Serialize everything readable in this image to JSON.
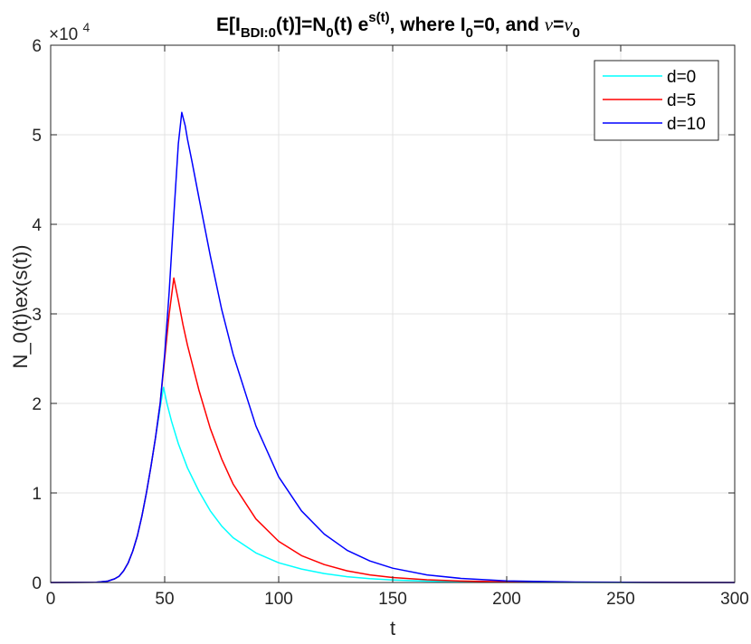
{
  "chart_data": {
    "type": "line",
    "title": {
      "parts": [
        {
          "text": "E[I",
          "style": "normal"
        },
        {
          "text": "BDI:0",
          "style": "sub"
        },
        {
          "text": "(t)]=N",
          "style": "normal"
        },
        {
          "text": "0",
          "style": "sub"
        },
        {
          "text": "(t) e",
          "style": "normal"
        },
        {
          "text": "s(t)",
          "style": "sup"
        },
        {
          "text": ", where I",
          "style": "normal"
        },
        {
          "text": "0",
          "style": "sub"
        },
        {
          "text": "=0, and ",
          "style": "normal"
        },
        {
          "text": "ν",
          "style": "italic"
        },
        {
          "text": "=",
          "style": "normal"
        },
        {
          "text": "ν",
          "style": "italic"
        },
        {
          "text": "0",
          "style": "sub"
        }
      ]
    },
    "xlabel": "t",
    "ylabel": "N_0(t)\\ex(s(t))",
    "y_exponent_label": "×10",
    "y_exponent_power": "4",
    "xlim": [
      0,
      300
    ],
    "ylim": [
      0,
      6
    ],
    "xticks": [
      0,
      50,
      100,
      150,
      200,
      250,
      300
    ],
    "yticks": [
      0,
      1,
      2,
      3,
      4,
      5,
      6
    ],
    "grid": true,
    "legend_position": "top-right",
    "series": [
      {
        "name": "d=0",
        "color": "#00ffff",
        "points": [
          [
            0,
            0
          ],
          [
            20,
            0.003
          ],
          [
            25,
            0.015
          ],
          [
            28,
            0.04
          ],
          [
            30,
            0.07
          ],
          [
            32,
            0.13
          ],
          [
            34,
            0.22
          ],
          [
            36,
            0.35
          ],
          [
            38,
            0.52
          ],
          [
            40,
            0.74
          ],
          [
            42,
            1.0
          ],
          [
            44,
            1.3
          ],
          [
            46,
            1.62
          ],
          [
            48,
            1.95
          ],
          [
            49.5,
            2.18
          ],
          [
            51,
            2.0
          ],
          [
            53,
            1.8
          ],
          [
            56,
            1.55
          ],
          [
            60,
            1.28
          ],
          [
            65,
            1.02
          ],
          [
            70,
            0.8
          ],
          [
            75,
            0.63
          ],
          [
            80,
            0.5
          ],
          [
            90,
            0.33
          ],
          [
            100,
            0.22
          ],
          [
            110,
            0.15
          ],
          [
            120,
            0.1
          ],
          [
            130,
            0.065
          ],
          [
            140,
            0.042
          ],
          [
            150,
            0.028
          ],
          [
            165,
            0.015
          ],
          [
            180,
            0.008
          ],
          [
            200,
            0.003
          ],
          [
            230,
            0.001
          ],
          [
            260,
            0.0003
          ],
          [
            300,
            0
          ]
        ]
      },
      {
        "name": "d=5",
        "color": "#ff0000",
        "points": [
          [
            0,
            0
          ],
          [
            20,
            0.003
          ],
          [
            25,
            0.015
          ],
          [
            28,
            0.04
          ],
          [
            30,
            0.07
          ],
          [
            32,
            0.13
          ],
          [
            34,
            0.22
          ],
          [
            36,
            0.35
          ],
          [
            38,
            0.52
          ],
          [
            40,
            0.74
          ],
          [
            42,
            1.0
          ],
          [
            44,
            1.3
          ],
          [
            46,
            1.62
          ],
          [
            48,
            2.0
          ],
          [
            50,
            2.5
          ],
          [
            52,
            3.0
          ],
          [
            54,
            3.4
          ],
          [
            56,
            3.15
          ],
          [
            58,
            2.88
          ],
          [
            60,
            2.65
          ],
          [
            65,
            2.15
          ],
          [
            70,
            1.72
          ],
          [
            75,
            1.38
          ],
          [
            80,
            1.1
          ],
          [
            90,
            0.71
          ],
          [
            100,
            0.46
          ],
          [
            110,
            0.3
          ],
          [
            120,
            0.2
          ],
          [
            130,
            0.13
          ],
          [
            140,
            0.085
          ],
          [
            150,
            0.056
          ],
          [
            165,
            0.03
          ],
          [
            180,
            0.016
          ],
          [
            200,
            0.007
          ],
          [
            230,
            0.002
          ],
          [
            260,
            0.0006
          ],
          [
            300,
            0
          ]
        ]
      },
      {
        "name": "d=10",
        "color": "#0000ff",
        "points": [
          [
            0,
            0
          ],
          [
            20,
            0.003
          ],
          [
            25,
            0.015
          ],
          [
            28,
            0.04
          ],
          [
            30,
            0.07
          ],
          [
            32,
            0.13
          ],
          [
            34,
            0.22
          ],
          [
            36,
            0.35
          ],
          [
            38,
            0.52
          ],
          [
            40,
            0.74
          ],
          [
            42,
            1.0
          ],
          [
            44,
            1.3
          ],
          [
            46,
            1.62
          ],
          [
            48,
            2.0
          ],
          [
            50,
            2.55
          ],
          [
            52,
            3.25
          ],
          [
            54,
            4.1
          ],
          [
            56,
            4.9
          ],
          [
            57.5,
            5.25
          ],
          [
            59,
            5.1
          ],
          [
            60,
            4.95
          ],
          [
            62,
            4.7
          ],
          [
            65,
            4.3
          ],
          [
            70,
            3.65
          ],
          [
            75,
            3.05
          ],
          [
            80,
            2.55
          ],
          [
            90,
            1.75
          ],
          [
            100,
            1.18
          ],
          [
            110,
            0.8
          ],
          [
            120,
            0.54
          ],
          [
            130,
            0.36
          ],
          [
            140,
            0.24
          ],
          [
            150,
            0.16
          ],
          [
            165,
            0.085
          ],
          [
            180,
            0.045
          ],
          [
            200,
            0.018
          ],
          [
            230,
            0.005
          ],
          [
            260,
            0.0015
          ],
          [
            300,
            0
          ]
        ]
      }
    ]
  }
}
